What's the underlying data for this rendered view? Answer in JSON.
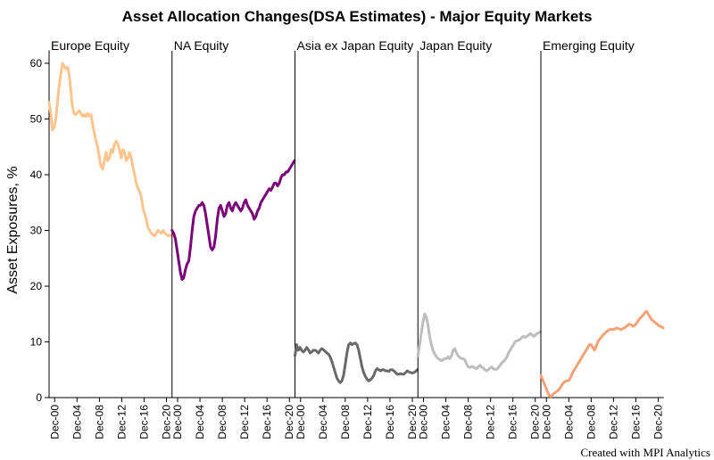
{
  "chart_data": {
    "type": "line",
    "title": "Asset Allocation Changes(DSA Estimates) - Major Equity Markets",
    "ylabel": "Asset Exposures, %",
    "ylim": [
      0,
      62
    ],
    "y_ticks": [
      0,
      10,
      20,
      30,
      40,
      50,
      60
    ],
    "x_ticks": [
      "Dec-00",
      "Dec-04",
      "Dec-08",
      "Dec-12",
      "Dec-16",
      "Dec-20"
    ],
    "x_range": [
      1999,
      2021
    ],
    "grid": false,
    "caption": "Created with MPI Analytics",
    "panels": [
      {
        "name": "Europe Equity",
        "color": "#FDC48E",
        "x": [
          1999.0,
          1999.3,
          1999.6,
          1999.9,
          2000.2,
          2000.5,
          2000.8,
          2001.1,
          2001.4,
          2001.7,
          2002.0,
          2002.3,
          2002.6,
          2002.9,
          2003.2,
          2003.5,
          2003.8,
          2004.1,
          2004.4,
          2004.7,
          2005.0,
          2005.3,
          2005.6,
          2005.9,
          2006.2,
          2006.5,
          2006.8,
          2007.1,
          2007.4,
          2007.7,
          2008.0,
          2008.3,
          2008.6,
          2008.9,
          2009.2,
          2009.5,
          2009.8,
          2010.1,
          2010.4,
          2010.7,
          2011.0,
          2011.3,
          2011.6,
          2011.9,
          2012.2,
          2012.5,
          2012.8,
          2013.1,
          2013.4,
          2013.7,
          2014.0,
          2014.3,
          2014.6,
          2014.9,
          2015.2,
          2015.5,
          2015.8,
          2016.1,
          2016.4,
          2016.7,
          2017.0,
          2017.3,
          2017.6,
          2017.9,
          2018.2,
          2018.5,
          2018.8,
          2019.1,
          2019.4,
          2019.7,
          2020.0,
          2020.3,
          2020.6,
          2020.9
        ],
        "y": [
          53,
          51,
          48,
          48.5,
          50,
          53,
          56,
          58,
          60,
          59.5,
          59,
          59.3,
          58,
          55,
          52,
          51,
          50.8,
          51.2,
          51.5,
          51,
          50.5,
          50.8,
          50.4,
          51,
          50.5,
          50.8,
          49,
          47.5,
          46,
          45,
          43,
          41.5,
          41,
          42.5,
          44,
          42.5,
          43,
          44.5,
          44,
          45.5,
          46,
          45.5,
          44.5,
          43,
          44.5,
          44,
          42.5,
          43,
          44,
          43,
          41.5,
          40,
          38.5,
          37.5,
          37,
          36,
          34,
          33,
          32,
          30.5,
          30,
          29.5,
          29.2,
          29,
          29.5,
          30,
          29.7,
          29.5,
          30,
          29.5,
          29.3,
          29,
          29.2,
          29
        ]
      },
      {
        "name": "NA Equity",
        "color": "#7A0177",
        "x": [
          1999.0,
          1999.3,
          1999.6,
          1999.9,
          2000.2,
          2000.5,
          2000.8,
          2001.1,
          2001.4,
          2001.7,
          2002.0,
          2002.3,
          2002.6,
          2002.9,
          2003.2,
          2003.5,
          2003.8,
          2004.1,
          2004.4,
          2004.7,
          2005.0,
          2005.3,
          2005.6,
          2005.9,
          2006.2,
          2006.5,
          2006.8,
          2007.1,
          2007.4,
          2007.7,
          2008.0,
          2008.3,
          2008.6,
          2008.9,
          2009.2,
          2009.5,
          2009.8,
          2010.1,
          2010.4,
          2010.7,
          2011.0,
          2011.3,
          2011.6,
          2011.9,
          2012.2,
          2012.5,
          2012.8,
          2013.1,
          2013.4,
          2013.7,
          2014.0,
          2014.3,
          2014.6,
          2014.9,
          2015.2,
          2015.5,
          2015.8,
          2016.1,
          2016.4,
          2016.7,
          2017.0,
          2017.3,
          2017.6,
          2017.9,
          2018.2,
          2018.5,
          2018.8,
          2019.1,
          2019.4,
          2019.7,
          2020.0,
          2020.3,
          2020.6,
          2020.9
        ],
        "y": [
          30,
          29.5,
          28.5,
          26.5,
          24.5,
          22.5,
          21.2,
          21.5,
          23,
          24,
          24.5,
          27,
          30,
          32.5,
          33.5,
          34,
          34.5,
          34.5,
          35,
          34.5,
          33,
          31,
          29,
          27,
          26.5,
          27,
          29,
          32,
          34,
          34.5,
          33.5,
          32.5,
          33,
          34.5,
          35,
          34,
          33.5,
          34.5,
          35,
          34.5,
          34,
          33.5,
          34,
          35,
          35.5,
          34.5,
          34,
          33.5,
          33,
          32,
          32.5,
          33.5,
          34,
          35,
          35.5,
          36,
          36.5,
          37,
          37.5,
          37.2,
          37.8,
          38.5,
          38.5,
          38,
          38.5,
          39.5,
          40,
          40,
          40.5,
          40.5,
          41,
          41.5,
          42,
          42.5
        ]
      },
      {
        "name": "Asia ex Japan Equity",
        "color": "#696969",
        "x": [
          1999.0,
          1999.3,
          1999.6,
          1999.9,
          2000.2,
          2000.5,
          2000.8,
          2001.1,
          2001.4,
          2001.7,
          2002.0,
          2002.3,
          2002.6,
          2002.9,
          2003.2,
          2003.5,
          2003.8,
          2004.1,
          2004.4,
          2004.7,
          2005.0,
          2005.3,
          2005.6,
          2005.9,
          2006.2,
          2006.5,
          2006.8,
          2007.1,
          2007.4,
          2007.7,
          2008.0,
          2008.3,
          2008.6,
          2008.9,
          2009.2,
          2009.5,
          2009.8,
          2010.1,
          2010.4,
          2010.7,
          2011.0,
          2011.3,
          2011.6,
          2011.9,
          2012.2,
          2012.5,
          2012.8,
          2013.1,
          2013.4,
          2013.7,
          2014.0,
          2014.3,
          2014.6,
          2014.9,
          2015.2,
          2015.5,
          2015.8,
          2016.1,
          2016.4,
          2016.7,
          2017.0,
          2017.3,
          2017.6,
          2017.9,
          2018.2,
          2018.5,
          2018.8,
          2019.1,
          2019.4,
          2019.7,
          2020.0,
          2020.3,
          2020.6,
          2020.9
        ],
        "y": [
          7.5,
          9.5,
          8.5,
          9,
          8.5,
          8.2,
          8.5,
          9,
          8.6,
          8,
          8.2,
          8.5,
          8.5,
          8.3,
          8,
          8.5,
          8.8,
          8.6,
          8.3,
          8,
          7.8,
          7.3,
          6.5,
          5.5,
          4.5,
          3.5,
          3,
          2.7,
          3,
          4,
          6,
          8,
          9.5,
          9.8,
          9.5,
          9.7,
          9.8,
          9.5,
          8.5,
          7,
          5.5,
          4.5,
          3.8,
          3.3,
          3,
          3.2,
          3.5,
          4,
          4.8,
          5.2,
          5,
          4.8,
          5,
          5,
          4.8,
          4.8,
          4.7,
          5,
          5,
          4.8,
          4.5,
          4.2,
          4.2,
          4.3,
          4.2,
          4.2,
          4.5,
          4.8,
          4.6,
          4.5,
          4.4,
          4.5,
          4.7,
          5
        ]
      },
      {
        "name": "Japan Equity",
        "color": "#BDBDBD",
        "x": [
          1999.0,
          1999.3,
          1999.6,
          1999.9,
          2000.2,
          2000.5,
          2000.8,
          2001.1,
          2001.4,
          2001.7,
          2002.0,
          2002.3,
          2002.6,
          2002.9,
          2003.2,
          2003.5,
          2003.8,
          2004.1,
          2004.4,
          2004.7,
          2005.0,
          2005.3,
          2005.6,
          2005.9,
          2006.2,
          2006.5,
          2006.8,
          2007.1,
          2007.4,
          2007.7,
          2008.0,
          2008.3,
          2008.6,
          2008.9,
          2009.2,
          2009.5,
          2009.8,
          2010.1,
          2010.4,
          2010.7,
          2011.0,
          2011.3,
          2011.6,
          2011.9,
          2012.2,
          2012.5,
          2012.8,
          2013.1,
          2013.4,
          2013.7,
          2014.0,
          2014.3,
          2014.6,
          2014.9,
          2015.2,
          2015.5,
          2015.8,
          2016.1,
          2016.4,
          2016.7,
          2017.0,
          2017.3,
          2017.6,
          2017.9,
          2018.2,
          2018.5,
          2018.8,
          2019.1,
          2019.4,
          2019.7,
          2020.0,
          2020.3,
          2020.6,
          2020.9
        ],
        "y": [
          7.5,
          9.5,
          11.5,
          13.5,
          15,
          14.5,
          13,
          11,
          9.5,
          8.5,
          7.8,
          7.4,
          7,
          6.8,
          6.6,
          6.8,
          7,
          7,
          7.3,
          7,
          7.5,
          8.5,
          8.8,
          8,
          7.5,
          7.2,
          7,
          7,
          6.8,
          6,
          5.5,
          5.4,
          5.6,
          5.5,
          5.3,
          5.2,
          5.5,
          5.8,
          5.5,
          5.3,
          5,
          4.8,
          5,
          5.3,
          5.5,
          5.2,
          5,
          5.1,
          5.4,
          5.8,
          6.2,
          6.5,
          6.8,
          7.3,
          8,
          8.5,
          9,
          9.5,
          10,
          10.2,
          10.3,
          10.5,
          10.8,
          11,
          10.8,
          11,
          11.2,
          11.5,
          11.3,
          11,
          11.2,
          11.5,
          11.6,
          11.8
        ]
      },
      {
        "name": "Emerging Equity",
        "color": "#F4A275",
        "x": [
          1999.0,
          1999.3,
          1999.6,
          1999.9,
          2000.2,
          2000.5,
          2000.8,
          2001.1,
          2001.4,
          2001.7,
          2002.0,
          2002.3,
          2002.6,
          2002.9,
          2003.2,
          2003.5,
          2003.8,
          2004.1,
          2004.4,
          2004.7,
          2005.0,
          2005.3,
          2005.6,
          2005.9,
          2006.2,
          2006.5,
          2006.8,
          2007.1,
          2007.4,
          2007.7,
          2008.0,
          2008.3,
          2008.6,
          2008.9,
          2009.2,
          2009.5,
          2009.8,
          2010.1,
          2010.4,
          2010.7,
          2011.0,
          2011.3,
          2011.6,
          2011.9,
          2012.2,
          2012.5,
          2012.8,
          2013.1,
          2013.4,
          2013.7,
          2014.0,
          2014.3,
          2014.6,
          2014.9,
          2015.2,
          2015.5,
          2015.8,
          2016.1,
          2016.4,
          2016.7,
          2017.0,
          2017.3,
          2017.6,
          2017.9,
          2018.2,
          2018.5,
          2018.8,
          2019.1,
          2019.4,
          2019.7,
          2020.0,
          2020.3,
          2020.6,
          2020.9
        ],
        "y": [
          4,
          3.3,
          2.5,
          1.8,
          1,
          0.4,
          0.2,
          0.5,
          0.8,
          1,
          1.2,
          1.5,
          2,
          2.5,
          2.8,
          3,
          3,
          3.2,
          3.8,
          4.5,
          5,
          5.5,
          6,
          6.5,
          7,
          7.5,
          8,
          8.5,
          9,
          9.5,
          9.5,
          9,
          8.5,
          9.2,
          10,
          10.5,
          10.8,
          11.2,
          11.5,
          11.8,
          12,
          12.2,
          12.3,
          12.2,
          12.3,
          12.5,
          12.4,
          12.3,
          12.2,
          12.4,
          12.5,
          12.8,
          13,
          13.2,
          13,
          12.8,
          13,
          13.3,
          13.8,
          14.2,
          14.5,
          14.8,
          15.2,
          15.5,
          15,
          14.5,
          14,
          13.8,
          13.5,
          13.3,
          13,
          12.8,
          12.7,
          12.5
        ]
      }
    ]
  }
}
